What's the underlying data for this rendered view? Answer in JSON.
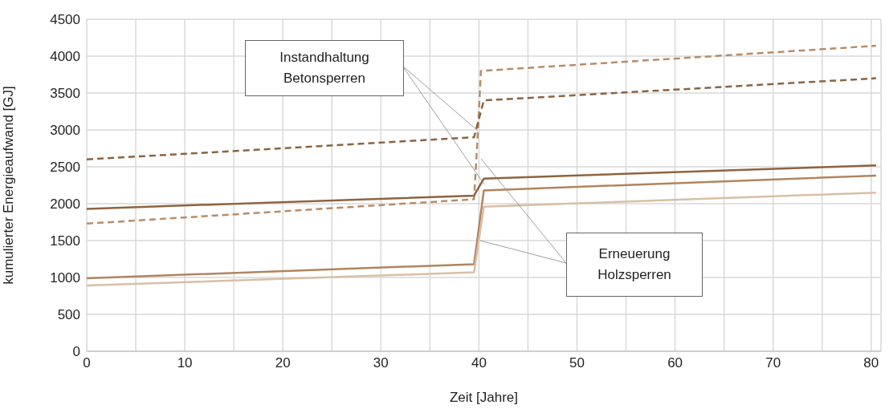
{
  "chart_data": {
    "type": "line",
    "xlabel": "Zeit [Jahre]",
    "ylabel": "kumulierter Energieaufwand [GJ]",
    "xlim": [
      0,
      81
    ],
    "xticks": [
      0,
      {
        "value": 5,
        "label": null
      },
      10,
      {
        "value": 15,
        "label": null
      },
      20,
      {
        "value": 25,
        "label": null
      },
      30,
      {
        "value": 35,
        "label": null
      },
      40,
      {
        "value": 45,
        "label": null
      },
      50,
      {
        "value": 55,
        "label": null
      },
      60,
      {
        "value": 65,
        "label": null
      },
      70,
      {
        "value": 75,
        "label": null
      },
      80
    ],
    "ylim": [
      0,
      4500
    ],
    "yticks": [
      0,
      500,
      1000,
      1500,
      2000,
      2500,
      3000,
      3500,
      4000,
      4500
    ],
    "grid": true,
    "legend": false,
    "marker": "none",
    "series": [
      {
        "color": "#b88d68",
        "line_style": "dashed",
        "x": [
          0,
          39.5,
          39.9,
          40.2,
          80.5
        ],
        "values": [
          1730,
          2060,
          3000,
          3800,
          4140
        ]
      },
      {
        "color": "#8c6440",
        "line_style": "dashed",
        "x": [
          0,
          39.5,
          40.5,
          80.5
        ],
        "values": [
          2600,
          2900,
          3400,
          3700
        ]
      },
      {
        "color": "#8c6440",
        "line_style": "solid",
        "x": [
          0,
          39.5,
          40.5,
          80.5
        ],
        "values": [
          1930,
          2110,
          2340,
          2520
        ]
      },
      {
        "color": "#b08560",
        "line_style": "solid",
        "x": [
          0,
          39.5,
          40.5,
          80.5
        ],
        "values": [
          990,
          1180,
          2180,
          2380
        ]
      },
      {
        "color": "#d8bfa5",
        "line_style": "solid",
        "x": [
          0,
          39.5,
          40.5,
          80.5
        ],
        "values": [
          890,
          1070,
          1960,
          2150
        ]
      }
    ],
    "annotations": [
      "Instandhaltung Betonsperren",
      "Erneuerung Holzsperren"
    ]
  }
}
